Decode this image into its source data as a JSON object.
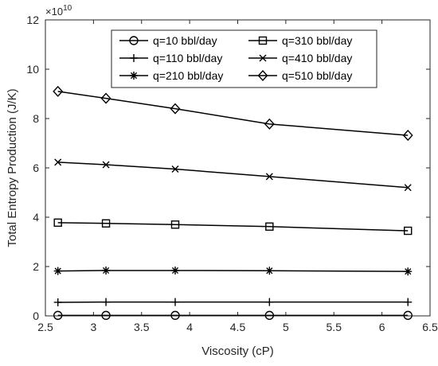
{
  "chart_data": {
    "type": "line",
    "xlabel": "Viscosity (cP)",
    "ylabel": "Total Entropy Production (J/K)",
    "exponent_base": "×10",
    "exponent_power": "10",
    "xlim": [
      2.5,
      6.5
    ],
    "ylim": [
      0,
      12
    ],
    "xticks": [
      "2.5",
      "3",
      "3.5",
      "4",
      "4.5",
      "5",
      "5.5",
      "6",
      "6.5"
    ],
    "yticks": [
      "0",
      "2",
      "4",
      "6",
      "8",
      "10",
      "12"
    ],
    "grid": false,
    "legend_position": "top",
    "x": [
      2.63,
      3.13,
      3.85,
      4.83,
      6.27
    ],
    "series": [
      {
        "name": "q=10 bbl/day",
        "marker": "circle",
        "values": [
          0.02,
          0.02,
          0.02,
          0.02,
          0.02
        ]
      },
      {
        "name": "q=110 bbl/day",
        "marker": "plus",
        "values": [
          0.55,
          0.56,
          0.56,
          0.56,
          0.56
        ]
      },
      {
        "name": "q=210 bbl/day",
        "marker": "star",
        "values": [
          1.82,
          1.84,
          1.84,
          1.83,
          1.8
        ]
      },
      {
        "name": "q=310 bbl/day",
        "marker": "square",
        "values": [
          3.78,
          3.75,
          3.7,
          3.62,
          3.45
        ]
      },
      {
        "name": "q=410 bbl/day",
        "marker": "x",
        "values": [
          6.23,
          6.13,
          5.95,
          5.65,
          5.2
        ]
      },
      {
        "name": "q=510 bbl/day",
        "marker": "diamond",
        "values": [
          9.1,
          8.82,
          8.4,
          7.78,
          7.32
        ]
      }
    ]
  }
}
